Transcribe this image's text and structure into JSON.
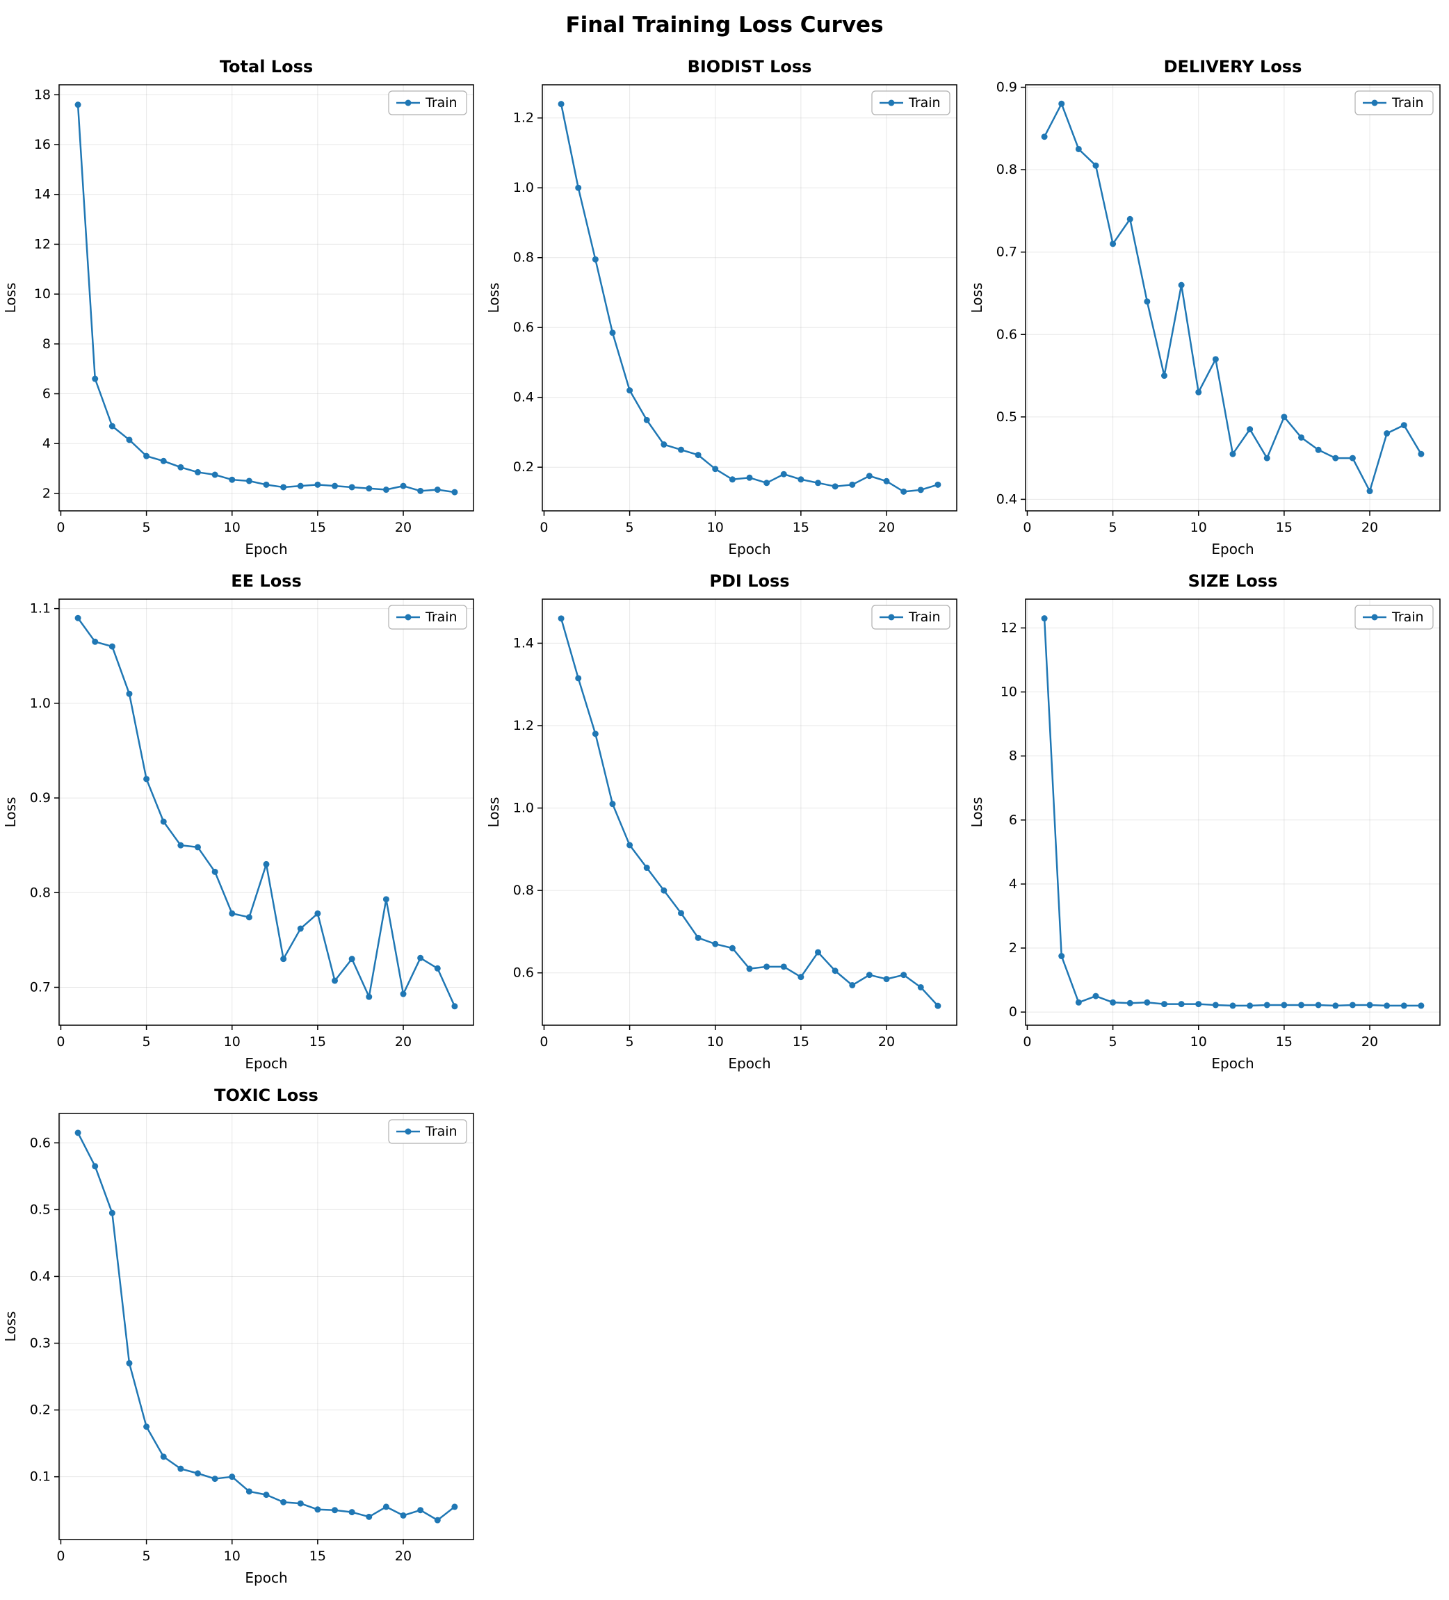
{
  "title": "Final Training Loss Curves",
  "chart_style": {
    "line_color": "#1f77b4",
    "grid_color": "#b0b0b0",
    "legend_position": "upper right",
    "marker": "circle",
    "grid": true
  },
  "chart_data": [
    {
      "id": "total-loss",
      "type": "line",
      "title": "Total Loss",
      "xlabel": "Epoch",
      "ylabel": "Loss",
      "legend": [
        "Train"
      ],
      "x": [
        1,
        2,
        3,
        4,
        5,
        6,
        7,
        8,
        9,
        10,
        11,
        12,
        13,
        14,
        15,
        16,
        17,
        18,
        19,
        20,
        21,
        22,
        23
      ],
      "series": [
        {
          "name": "Train",
          "values": [
            17.6,
            6.6,
            4.7,
            4.15,
            3.5,
            3.3,
            3.05,
            2.85,
            2.75,
            2.55,
            2.5,
            2.35,
            2.25,
            2.3,
            2.35,
            2.3,
            2.25,
            2.2,
            2.15,
            2.3,
            2.1,
            2.15,
            2.05
          ]
        }
      ],
      "xlim": [
        -0.1,
        24.1
      ],
      "ylim": [
        1.3,
        18.4
      ],
      "xticks": [
        0,
        5,
        10,
        15,
        20
      ],
      "yticks": [
        2,
        4,
        6,
        8,
        10,
        12,
        14,
        16,
        18
      ],
      "ytick_decimals": 0
    },
    {
      "id": "biodist-loss",
      "type": "line",
      "title": "BIODIST Loss",
      "xlabel": "Epoch",
      "ylabel": "Loss",
      "legend": [
        "Train"
      ],
      "x": [
        1,
        2,
        3,
        4,
        5,
        6,
        7,
        8,
        9,
        10,
        11,
        12,
        13,
        14,
        15,
        16,
        17,
        18,
        19,
        20,
        21,
        22,
        23
      ],
      "series": [
        {
          "name": "Train",
          "values": [
            1.24,
            1.0,
            0.795,
            0.585,
            0.42,
            0.335,
            0.265,
            0.25,
            0.235,
            0.195,
            0.165,
            0.17,
            0.155,
            0.18,
            0.165,
            0.155,
            0.145,
            0.15,
            0.175,
            0.16,
            0.13,
            0.135,
            0.15
          ]
        }
      ],
      "xlim": [
        -0.1,
        24.1
      ],
      "ylim": [
        0.075,
        1.295
      ],
      "xticks": [
        0,
        5,
        10,
        15,
        20
      ],
      "yticks": [
        0.2,
        0.4,
        0.6,
        0.8,
        1.0,
        1.2
      ],
      "ytick_decimals": 1
    },
    {
      "id": "delivery-loss",
      "type": "line",
      "title": "DELIVERY Loss",
      "xlabel": "Epoch",
      "ylabel": "Loss",
      "legend": [
        "Train"
      ],
      "x": [
        1,
        2,
        3,
        4,
        5,
        6,
        7,
        8,
        9,
        10,
        11,
        12,
        13,
        14,
        15,
        16,
        17,
        18,
        19,
        20,
        21,
        22,
        23
      ],
      "series": [
        {
          "name": "Train",
          "values": [
            0.84,
            0.88,
            0.825,
            0.805,
            0.71,
            0.74,
            0.64,
            0.55,
            0.66,
            0.53,
            0.57,
            0.455,
            0.485,
            0.45,
            0.5,
            0.475,
            0.46,
            0.45,
            0.45,
            0.41,
            0.48,
            0.49,
            0.455
          ]
        }
      ],
      "xlim": [
        -0.1,
        24.1
      ],
      "ylim": [
        0.386,
        0.903
      ],
      "xticks": [
        0,
        5,
        10,
        15,
        20
      ],
      "yticks": [
        0.4,
        0.5,
        0.6,
        0.7,
        0.8,
        0.9
      ],
      "ytick_decimals": 1
    },
    {
      "id": "ee-loss",
      "type": "line",
      "title": "EE Loss",
      "xlabel": "Epoch",
      "ylabel": "Loss",
      "legend": [
        "Train"
      ],
      "x": [
        1,
        2,
        3,
        4,
        5,
        6,
        7,
        8,
        9,
        10,
        11,
        12,
        13,
        14,
        15,
        16,
        17,
        18,
        19,
        20,
        21,
        22,
        23
      ],
      "series": [
        {
          "name": "Train",
          "values": [
            1.09,
            1.065,
            1.06,
            1.01,
            0.92,
            0.875,
            0.85,
            0.848,
            0.822,
            0.778,
            0.774,
            0.83,
            0.73,
            0.762,
            0.778,
            0.707,
            0.73,
            0.69,
            0.793,
            0.693,
            0.731,
            0.72,
            0.68
          ]
        }
      ],
      "xlim": [
        -0.1,
        24.1
      ],
      "ylim": [
        0.66,
        1.11
      ],
      "xticks": [
        0,
        5,
        10,
        15,
        20
      ],
      "yticks": [
        0.7,
        0.8,
        0.9,
        1.0,
        1.1
      ],
      "ytick_decimals": 1
    },
    {
      "id": "pdi-loss",
      "type": "line",
      "title": "PDI Loss",
      "xlabel": "Epoch",
      "ylabel": "Loss",
      "legend": [
        "Train"
      ],
      "x": [
        1,
        2,
        3,
        4,
        5,
        6,
        7,
        8,
        9,
        10,
        11,
        12,
        13,
        14,
        15,
        16,
        17,
        18,
        19,
        20,
        21,
        22,
        23
      ],
      "series": [
        {
          "name": "Train",
          "values": [
            1.46,
            1.315,
            1.18,
            1.01,
            0.91,
            0.855,
            0.8,
            0.745,
            0.685,
            0.67,
            0.66,
            0.61,
            0.615,
            0.615,
            0.59,
            0.65,
            0.605,
            0.57,
            0.595,
            0.585,
            0.595,
            0.565,
            0.52
          ]
        }
      ],
      "xlim": [
        -0.1,
        24.1
      ],
      "ylim": [
        0.473,
        1.507
      ],
      "xticks": [
        0,
        5,
        10,
        15,
        20
      ],
      "yticks": [
        0.6,
        0.8,
        1.0,
        1.2,
        1.4
      ],
      "ytick_decimals": 1
    },
    {
      "id": "size-loss",
      "type": "line",
      "title": "SIZE Loss",
      "xlabel": "Epoch",
      "ylabel": "Loss",
      "legend": [
        "Train"
      ],
      "x": [
        1,
        2,
        3,
        4,
        5,
        6,
        7,
        8,
        9,
        10,
        11,
        12,
        13,
        14,
        15,
        16,
        17,
        18,
        19,
        20,
        21,
        22,
        23
      ],
      "series": [
        {
          "name": "Train",
          "values": [
            12.3,
            1.75,
            0.3,
            0.5,
            0.3,
            0.28,
            0.3,
            0.25,
            0.25,
            0.25,
            0.22,
            0.2,
            0.2,
            0.22,
            0.22,
            0.22,
            0.22,
            0.2,
            0.22,
            0.22,
            0.2,
            0.2,
            0.2
          ]
        }
      ],
      "xlim": [
        -0.1,
        24.1
      ],
      "ylim": [
        -0.41,
        12.9
      ],
      "xticks": [
        0,
        5,
        10,
        15,
        20
      ],
      "yticks": [
        0,
        2,
        4,
        6,
        8,
        10,
        12
      ],
      "ytick_decimals": 0
    },
    {
      "id": "toxic-loss",
      "type": "line",
      "title": "TOXIC Loss",
      "xlabel": "Epoch",
      "ylabel": "Loss",
      "legend": [
        "Train"
      ],
      "x": [
        1,
        2,
        3,
        4,
        5,
        6,
        7,
        8,
        9,
        10,
        11,
        12,
        13,
        14,
        15,
        16,
        17,
        18,
        19,
        20,
        21,
        22,
        23
      ],
      "series": [
        {
          "name": "Train",
          "values": [
            0.615,
            0.565,
            0.495,
            0.27,
            0.175,
            0.13,
            0.112,
            0.105,
            0.097,
            0.1,
            0.078,
            0.073,
            0.062,
            0.06,
            0.051,
            0.05,
            0.047,
            0.04,
            0.055,
            0.042,
            0.05,
            0.035,
            0.055
          ]
        }
      ],
      "xlim": [
        -0.1,
        24.1
      ],
      "ylim": [
        0.006,
        0.644
      ],
      "xticks": [
        0,
        5,
        10,
        15,
        20
      ],
      "yticks": [
        0.1,
        0.2,
        0.3,
        0.4,
        0.5,
        0.6
      ],
      "ytick_decimals": 1
    }
  ]
}
